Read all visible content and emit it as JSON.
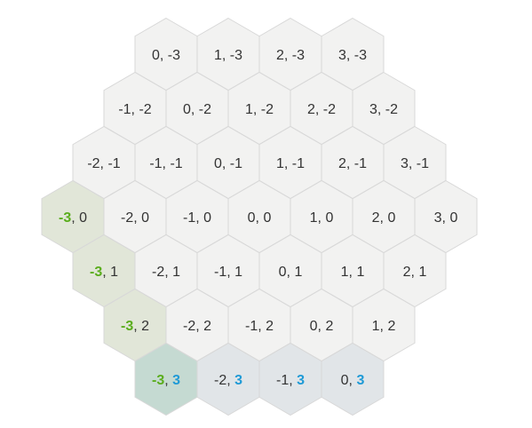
{
  "colors": {
    "default_fill": "#f2f2f1",
    "q_highlight_fill": "#e1e6d8",
    "r_highlight_fill": "#e1e5e8",
    "both_highlight_fill": "#c5dad2",
    "stroke": "#d8d8d8",
    "text": "#333333",
    "q_highlight_text": "#5aad1d",
    "r_highlight_text": "#1f9ad6"
  },
  "highlight": {
    "q": "-3",
    "r": "3"
  },
  "separator": ", ",
  "rows": [
    [
      {
        "q": "0",
        "r": "-3"
      },
      {
        "q": "1",
        "r": "-3"
      },
      {
        "q": "2",
        "r": "-3"
      },
      {
        "q": "3",
        "r": "-3"
      }
    ],
    [
      {
        "q": "-1",
        "r": "-2"
      },
      {
        "q": "0",
        "r": "-2"
      },
      {
        "q": "1",
        "r": "-2"
      },
      {
        "q": "2",
        "r": "-2"
      },
      {
        "q": "3",
        "r": "-2"
      }
    ],
    [
      {
        "q": "-2",
        "r": "-1"
      },
      {
        "q": "-1",
        "r": "-1"
      },
      {
        "q": "0",
        "r": "-1"
      },
      {
        "q": "1",
        "r": "-1"
      },
      {
        "q": "2",
        "r": "-1"
      },
      {
        "q": "3",
        "r": "-1"
      }
    ],
    [
      {
        "q": "-3",
        "r": "0"
      },
      {
        "q": "-2",
        "r": "0"
      },
      {
        "q": "-1",
        "r": "0"
      },
      {
        "q": "0",
        "r": "0"
      },
      {
        "q": "1",
        "r": "0"
      },
      {
        "q": "2",
        "r": "0"
      },
      {
        "q": "3",
        "r": "0"
      }
    ],
    [
      {
        "q": "-3",
        "r": "1"
      },
      {
        "q": "-2",
        "r": "1"
      },
      {
        "q": "-1",
        "r": "1"
      },
      {
        "q": "0",
        "r": "1"
      },
      {
        "q": "1",
        "r": "1"
      },
      {
        "q": "2",
        "r": "1"
      }
    ],
    [
      {
        "q": "-3",
        "r": "2"
      },
      {
        "q": "-2",
        "r": "2"
      },
      {
        "q": "-1",
        "r": "2"
      },
      {
        "q": "0",
        "r": "2"
      },
      {
        "q": "1",
        "r": "2"
      }
    ],
    [
      {
        "q": "-3",
        "r": "3"
      },
      {
        "q": "-2",
        "r": "3"
      },
      {
        "q": "-1",
        "r": "3"
      },
      {
        "q": "0",
        "r": "3"
      }
    ]
  ]
}
